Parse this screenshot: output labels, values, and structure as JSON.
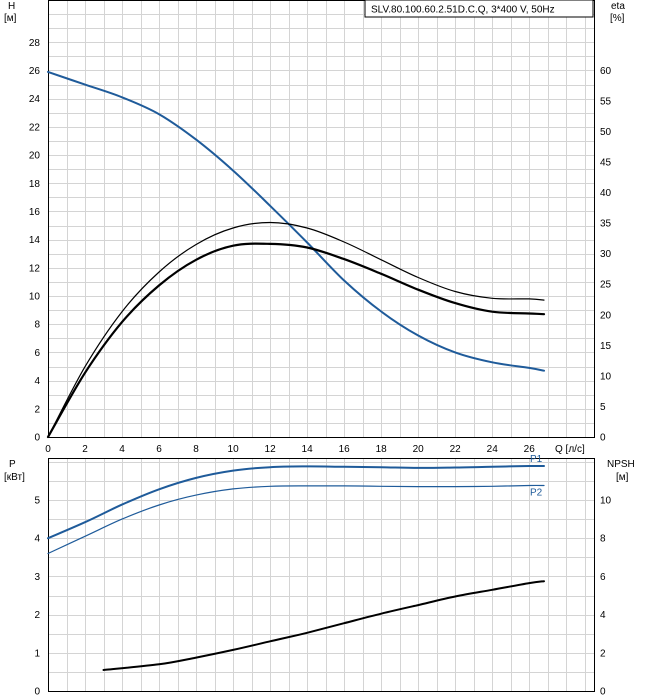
{
  "title": "SLV.80.100.60.2.51D.C.Q, 3*400 V, 50Hz",
  "chart_data": [
    {
      "type": "line",
      "panel": "top",
      "xlabel": "Q [л/с]",
      "ylabel_left": {
        "line1": "H",
        "line2": "[м]"
      },
      "ylabel_right": {
        "line1": "eta",
        "line2": "[%]"
      },
      "xlim": [
        0,
        29.5
      ],
      "ylim_left": [
        0,
        31
      ],
      "ylim_right": [
        0,
        71.5
      ],
      "x_ticks": [
        0,
        2,
        4,
        6,
        8,
        10,
        12,
        14,
        16,
        18,
        20,
        22,
        24,
        26
      ],
      "y_ticks_left": [
        0,
        2,
        4,
        6,
        8,
        10,
        12,
        14,
        16,
        18,
        20,
        22,
        24,
        26,
        28
      ],
      "y_ticks_right": [
        0,
        5,
        10,
        15,
        20,
        25,
        30,
        35,
        40,
        45,
        50,
        55,
        60
      ],
      "grid": true,
      "series": [
        {
          "axis": "left",
          "color": "#1f5b9a",
          "width": 2,
          "x": [
            0,
            2,
            4,
            6,
            8,
            10,
            12,
            14,
            16,
            18,
            20,
            22,
            24,
            26,
            26.8
          ],
          "y": [
            25.9,
            25.0,
            24.1,
            22.9,
            21.1,
            18.9,
            16.4,
            13.8,
            11.1,
            8.9,
            7.2,
            6.0,
            5.3,
            4.9,
            4.7
          ]
        },
        {
          "axis": "right",
          "color": "#000000",
          "width": 1.2,
          "x": [
            0,
            2,
            4,
            6,
            8,
            10,
            12,
            14,
            16,
            18,
            20,
            22,
            24,
            26,
            26.8
          ],
          "y": [
            0,
            11.5,
            20.5,
            27.0,
            31.5,
            34.2,
            35.1,
            34.2,
            31.9,
            29.0,
            26.1,
            23.8,
            22.7,
            22.6,
            22.4
          ]
        },
        {
          "axis": "right",
          "color": "#000000",
          "width": 2.2,
          "x": [
            0,
            2,
            4,
            6,
            8,
            10,
            12,
            14,
            16,
            18,
            20,
            22,
            24,
            26,
            26.8
          ],
          "y": [
            0,
            10.5,
            18.8,
            24.8,
            29.0,
            31.3,
            31.6,
            31.0,
            29.1,
            26.7,
            24.1,
            21.9,
            20.5,
            20.2,
            20.1
          ]
        }
      ]
    },
    {
      "type": "line",
      "panel": "bottom",
      "ylabel_left": {
        "line1": "P",
        "line2": "[кВт]"
      },
      "ylabel_right": {
        "line1": "NPSH",
        "line2": "[м]"
      },
      "xlim": [
        0,
        29.5
      ],
      "ylim_left": [
        0,
        6.1
      ],
      "ylim_right": [
        0,
        12.2
      ],
      "y_ticks_left": [
        0,
        1,
        2,
        3,
        4,
        5
      ],
      "y_ticks_right": [
        0,
        2,
        4,
        6,
        8,
        10
      ],
      "grid": true,
      "series": [
        {
          "name": "P1",
          "axis": "left",
          "color": "#1f5b9a",
          "width": 2,
          "x": [
            0,
            2,
            4,
            6,
            8,
            10,
            12,
            14,
            16,
            18,
            20,
            22,
            24,
            26,
            26.8
          ],
          "y": [
            4.0,
            4.42,
            4.88,
            5.28,
            5.58,
            5.77,
            5.86,
            5.88,
            5.87,
            5.86,
            5.84,
            5.85,
            5.87,
            5.89,
            5.89
          ]
        },
        {
          "name": "P2",
          "axis": "left",
          "color": "#1f5b9a",
          "width": 1.2,
          "x": [
            0,
            2,
            4,
            6,
            8,
            10,
            12,
            14,
            16,
            18,
            20,
            22,
            24,
            26,
            26.8
          ],
          "y": [
            3.6,
            4.05,
            4.5,
            4.87,
            5.13,
            5.29,
            5.36,
            5.37,
            5.37,
            5.36,
            5.35,
            5.35,
            5.36,
            5.38,
            5.38
          ]
        },
        {
          "axis": "right",
          "color": "#000000",
          "width": 2,
          "x": [
            3,
            6,
            8,
            10,
            12,
            14,
            16,
            18,
            20,
            22,
            24,
            26,
            26.8
          ],
          "y": [
            1.1,
            1.4,
            1.75,
            2.15,
            2.6,
            3.05,
            3.55,
            4.05,
            4.5,
            4.95,
            5.3,
            5.65,
            5.75
          ]
        }
      ]
    }
  ]
}
